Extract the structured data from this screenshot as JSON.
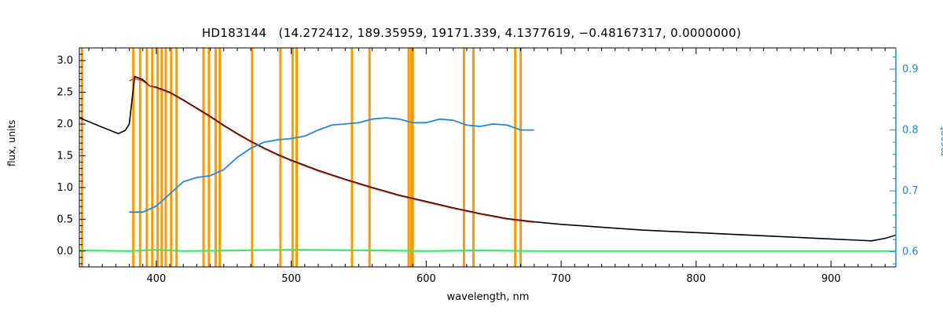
{
  "chart_data": {
    "type": "line",
    "title": "HD183144   (14.272412, 189.35959, 19171.339, 4.1377619, −0.48167317, 0.0000000)",
    "xlabel": "wavelength, nm",
    "ylabel": "flux, units",
    "y2label": "mcont",
    "xlim": [
      343,
      948
    ],
    "ylim": [
      -0.25,
      3.2
    ],
    "y2lim": [
      0.575,
      0.935
    ],
    "xticks": [
      400,
      500,
      600,
      700,
      800,
      900
    ],
    "yticks": [
      0.0,
      0.5,
      1.0,
      1.5,
      2.0,
      2.5,
      3.0
    ],
    "yticklabels": [
      "0.0",
      "0.5",
      "1.0",
      "1.5",
      "2.0",
      "2.5",
      "3.0"
    ],
    "y2ticks": [
      0.6,
      0.7,
      0.8,
      0.9
    ],
    "y2ticklabels": [
      "0.6",
      "0.7",
      "0.8",
      "0.9"
    ],
    "grid": false,
    "colors": {
      "observed": "#000000",
      "model": "#cc2200",
      "residual": "#33ee66",
      "mcont": "#2288dd",
      "mask": "#ff9900"
    },
    "mask_lines": [
      345,
      383,
      388,
      393,
      397,
      401,
      404,
      407,
      411,
      415,
      435,
      439,
      444,
      447,
      471,
      492,
      501,
      504,
      545,
      558,
      587,
      589,
      590,
      628,
      635,
      666,
      670
    ],
    "series": [
      {
        "key": "observed",
        "x": [
          343,
          360,
          372,
          377,
          380,
          384,
          390,
          395,
          400,
          410,
          420,
          430,
          440,
          450,
          460,
          470,
          480,
          490,
          500,
          520,
          540,
          560,
          580,
          600,
          620,
          640,
          660,
          680,
          700,
          720,
          740,
          760,
          780,
          800,
          820,
          840,
          860,
          880,
          900,
          920,
          930,
          940,
          948
        ],
        "y": [
          2.1,
          1.95,
          1.85,
          1.9,
          2.0,
          2.75,
          2.7,
          2.6,
          2.58,
          2.5,
          2.38,
          2.25,
          2.12,
          1.98,
          1.85,
          1.73,
          1.62,
          1.52,
          1.43,
          1.27,
          1.13,
          1.0,
          0.88,
          0.78,
          0.68,
          0.59,
          0.51,
          0.46,
          0.42,
          0.39,
          0.36,
          0.33,
          0.31,
          0.29,
          0.27,
          0.25,
          0.23,
          0.21,
          0.19,
          0.17,
          0.16,
          0.2,
          0.25
        ]
      },
      {
        "key": "model",
        "x": [
          380,
          384,
          390,
          395,
          400,
          410,
          420,
          430,
          440,
          450,
          460,
          470,
          480,
          490,
          500,
          520,
          540,
          560,
          580,
          600,
          620,
          640,
          660,
          680
        ],
        "y": [
          2.68,
          2.72,
          2.68,
          2.6,
          2.57,
          2.49,
          2.37,
          2.24,
          2.11,
          1.97,
          1.84,
          1.72,
          1.61,
          1.51,
          1.42,
          1.26,
          1.12,
          0.99,
          0.87,
          0.77,
          0.67,
          0.58,
          0.5,
          0.45
        ]
      },
      {
        "key": "residual",
        "x": [
          343,
          380,
          400,
          420,
          460,
          500,
          560,
          600,
          640,
          680,
          700,
          800,
          948
        ],
        "y": [
          0.01,
          0.0,
          0.02,
          0.0,
          0.01,
          0.02,
          0.01,
          0.0,
          0.01,
          0.0,
          0.0,
          0.0,
          0.0
        ]
      },
      {
        "key": "mcont",
        "axis": "y2",
        "x": [
          380,
          390,
          400,
          410,
          420,
          430,
          440,
          450,
          460,
          470,
          480,
          490,
          500,
          510,
          520,
          530,
          540,
          550,
          560,
          570,
          580,
          590,
          600,
          610,
          620,
          630,
          640,
          650,
          660,
          670,
          680
        ],
        "y": [
          0.665,
          0.665,
          0.675,
          0.695,
          0.715,
          0.722,
          0.725,
          0.735,
          0.755,
          0.77,
          0.78,
          0.784,
          0.786,
          0.79,
          0.8,
          0.808,
          0.81,
          0.812,
          0.818,
          0.82,
          0.818,
          0.812,
          0.812,
          0.818,
          0.816,
          0.808,
          0.806,
          0.81,
          0.808,
          0.8,
          0.8
        ]
      }
    ]
  }
}
